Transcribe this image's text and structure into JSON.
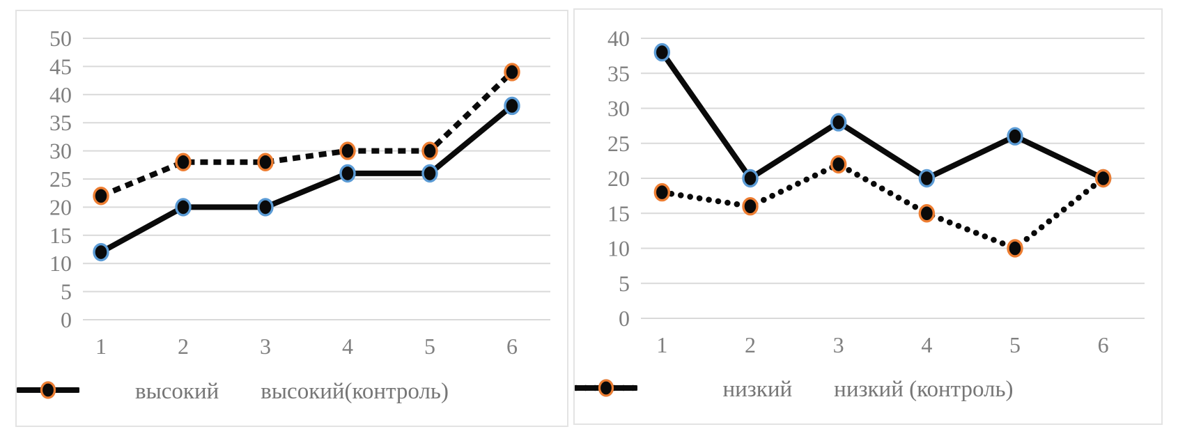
{
  "figure": {
    "background": "#ffffff",
    "panel_border_color": "#e3e3e3",
    "gridline_color": "#d9d9d9",
    "tick_label_color": "#7f7f7f",
    "legend_text_color": "#767676",
    "line_color": "#0a0a0a",
    "marker_fill_color": "#0a0a0a",
    "accent_blue": "#5B9BD5",
    "accent_orange": "#ED7D31"
  },
  "chart_data": [
    {
      "type": "line",
      "title": "",
      "xlabel": "",
      "ylabel": "",
      "x": [
        "1",
        "2",
        "3",
        "4",
        "5",
        "6"
      ],
      "ylim": [
        0,
        50
      ],
      "yticks": [
        "0",
        "5",
        "10",
        "15",
        "20",
        "25",
        "30",
        "35",
        "40",
        "45",
        "50"
      ],
      "grid": true,
      "legend_position": "bottom",
      "series": [
        {
          "name": "высокий",
          "values": [
            12,
            20,
            20,
            26,
            26,
            38
          ],
          "line_style": "solid",
          "line_color": "#0a0a0a",
          "marker": "circle",
          "marker_fill": "#0a0a0a",
          "marker_ring_color": "#5B9BD5"
        },
        {
          "name": "высокий(контроль)",
          "values": [
            22,
            28,
            28,
            30,
            30,
            44
          ],
          "line_style": "dashed",
          "line_color": "#0a0a0a",
          "marker": "circle",
          "marker_fill": "#0a0a0a",
          "marker_ring_color": "#ED7D31"
        }
      ]
    },
    {
      "type": "line",
      "title": "",
      "xlabel": "",
      "ylabel": "",
      "x": [
        "1",
        "2",
        "3",
        "4",
        "5",
        "6"
      ],
      "ylim": [
        0,
        40
      ],
      "yticks": [
        "0",
        "5",
        "10",
        "15",
        "20",
        "25",
        "30",
        "35",
        "40"
      ],
      "grid": true,
      "legend_position": "bottom",
      "series": [
        {
          "name": "низкий",
          "values": [
            38,
            20,
            28,
            20,
            26,
            20
          ],
          "line_style": "solid",
          "line_color": "#0a0a0a",
          "marker": "circle",
          "marker_fill": "#0a0a0a",
          "marker_ring_color": "#5B9BD5"
        },
        {
          "name": "низкий (контроль)",
          "values": [
            18,
            16,
            22,
            15,
            10,
            20
          ],
          "line_style": "dotted",
          "line_color": "#0a0a0a",
          "marker": "circle",
          "marker_fill": "#0a0a0a",
          "marker_ring_color": "#ED7D31"
        }
      ]
    }
  ]
}
